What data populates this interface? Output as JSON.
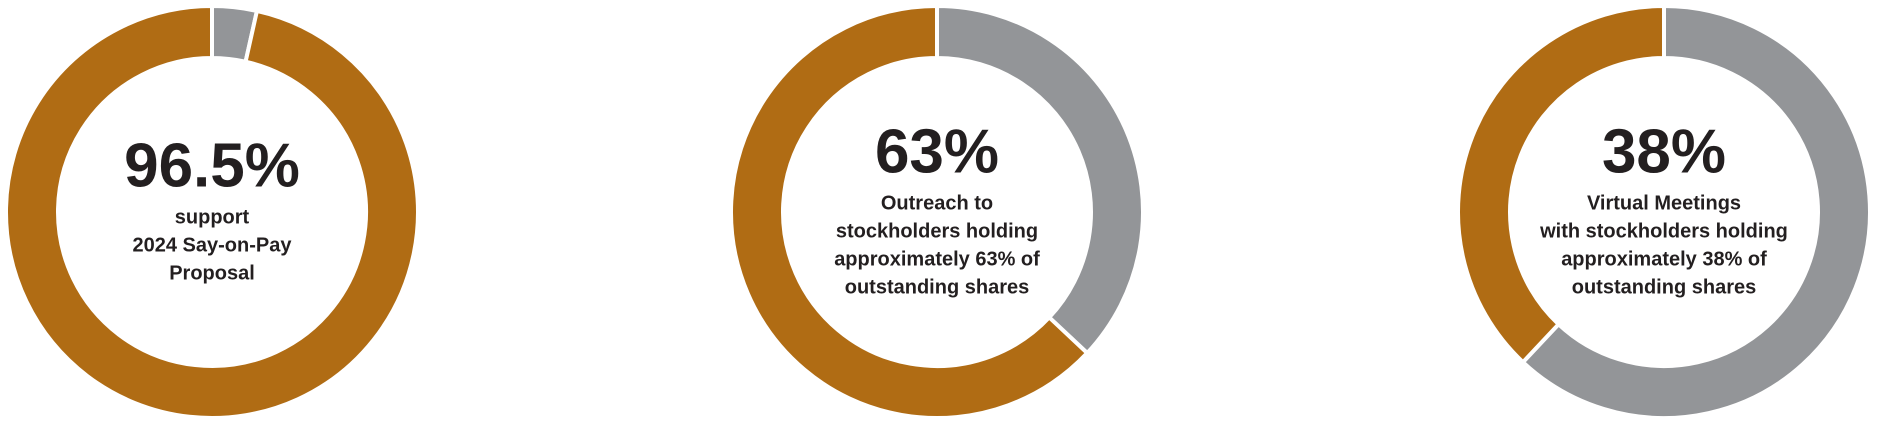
{
  "chart_data": [
    {
      "type": "donut",
      "values": [
        3.5,
        96.5
      ],
      "colors": [
        "#939598",
        "#b06c14"
      ],
      "value_labels": [
        null,
        "96.5%"
      ],
      "description": [
        "support",
        "2024 Say-on-Pay",
        "Proposal"
      ]
    },
    {
      "type": "donut",
      "values": [
        37,
        63
      ],
      "colors": [
        "#939598",
        "#b06c14"
      ],
      "value_labels": [
        null,
        "63%"
      ],
      "description": [
        "Outreach to",
        "stockholders holding",
        "approximately 63% of",
        "outstanding shares"
      ]
    },
    {
      "type": "donut",
      "values": [
        62,
        38
      ],
      "colors": [
        "#939598",
        "#b06c14"
      ],
      "value_labels": [
        null,
        "38%"
      ],
      "description": [
        "Virtual Meetings",
        "with stockholders holding",
        "approximately 38% of",
        "outstanding shares"
      ]
    }
  ]
}
